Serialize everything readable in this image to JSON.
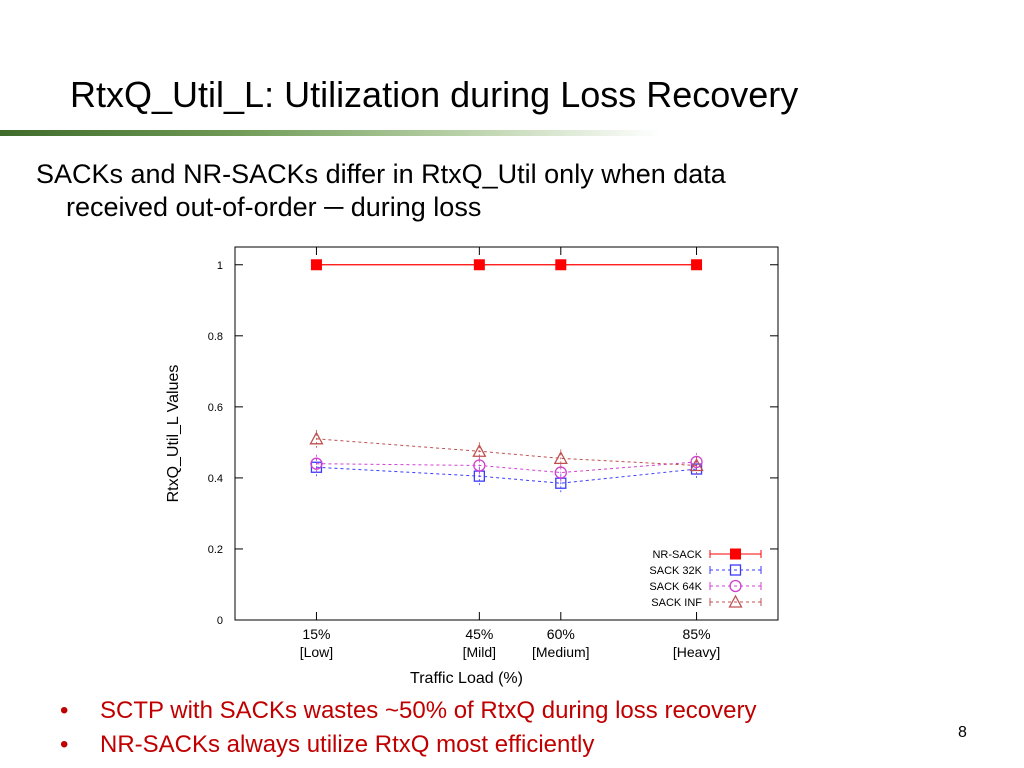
{
  "slide": {
    "title": "RtxQ_Util_L: Utilization during Loss Recovery",
    "intro_line1": "SACKs and NR-SACKs differ in RtxQ_Util only when data",
    "intro_line2": "received out-of-order ─ during loss",
    "bullets": [
      "SCTP with SACKs wastes ~50% of RtxQ during loss recovery",
      "NR-SACKs always utilize RtxQ most efficiently"
    ],
    "bullet_marker": "•",
    "page_number": "8"
  },
  "chart_data": {
    "type": "line",
    "xlabel": "Traffic Load (%)",
    "ylabel": "RtxQ_Util_L Values",
    "x": [
      15,
      45,
      60,
      85
    ],
    "xlim": [
      0,
      100
    ],
    "ylim": [
      0,
      1.05
    ],
    "x_ticks": [
      {
        "value": 15,
        "label": "15%",
        "sub": "[Low]"
      },
      {
        "value": 45,
        "label": "45%",
        "sub": "[Mild]"
      },
      {
        "value": 60,
        "label": "60%",
        "sub": "[Medium]"
      },
      {
        "value": 85,
        "label": "85%",
        "sub": "[Heavy]"
      }
    ],
    "y_ticks": [
      0,
      0.2,
      0.4,
      0.6,
      0.8,
      1
    ],
    "y_tick_labels": [
      "0",
      "0.2",
      "0.4",
      "0.6",
      "0.8",
      "1"
    ],
    "grid": false,
    "legend_position": "bottom-right",
    "series": [
      {
        "name": "NR-SACK",
        "values": [
          1.0,
          1.0,
          1.0,
          1.0
        ],
        "color": "#ff0000",
        "marker": "filled-square",
        "dashed": false
      },
      {
        "name": "SACK 32K",
        "values": [
          0.43,
          0.405,
          0.385,
          0.425
        ],
        "color": "#3b3bff",
        "marker": "open-square",
        "dashed": true
      },
      {
        "name": "SACK 64K",
        "values": [
          0.44,
          0.435,
          0.415,
          0.445
        ],
        "color": "#d040d0",
        "marker": "open-circle",
        "dashed": true
      },
      {
        "name": "SACK INF",
        "values": [
          0.51,
          0.475,
          0.455,
          0.435
        ],
        "color": "#c05050",
        "marker": "open-triangle",
        "dashed": true
      }
    ]
  }
}
